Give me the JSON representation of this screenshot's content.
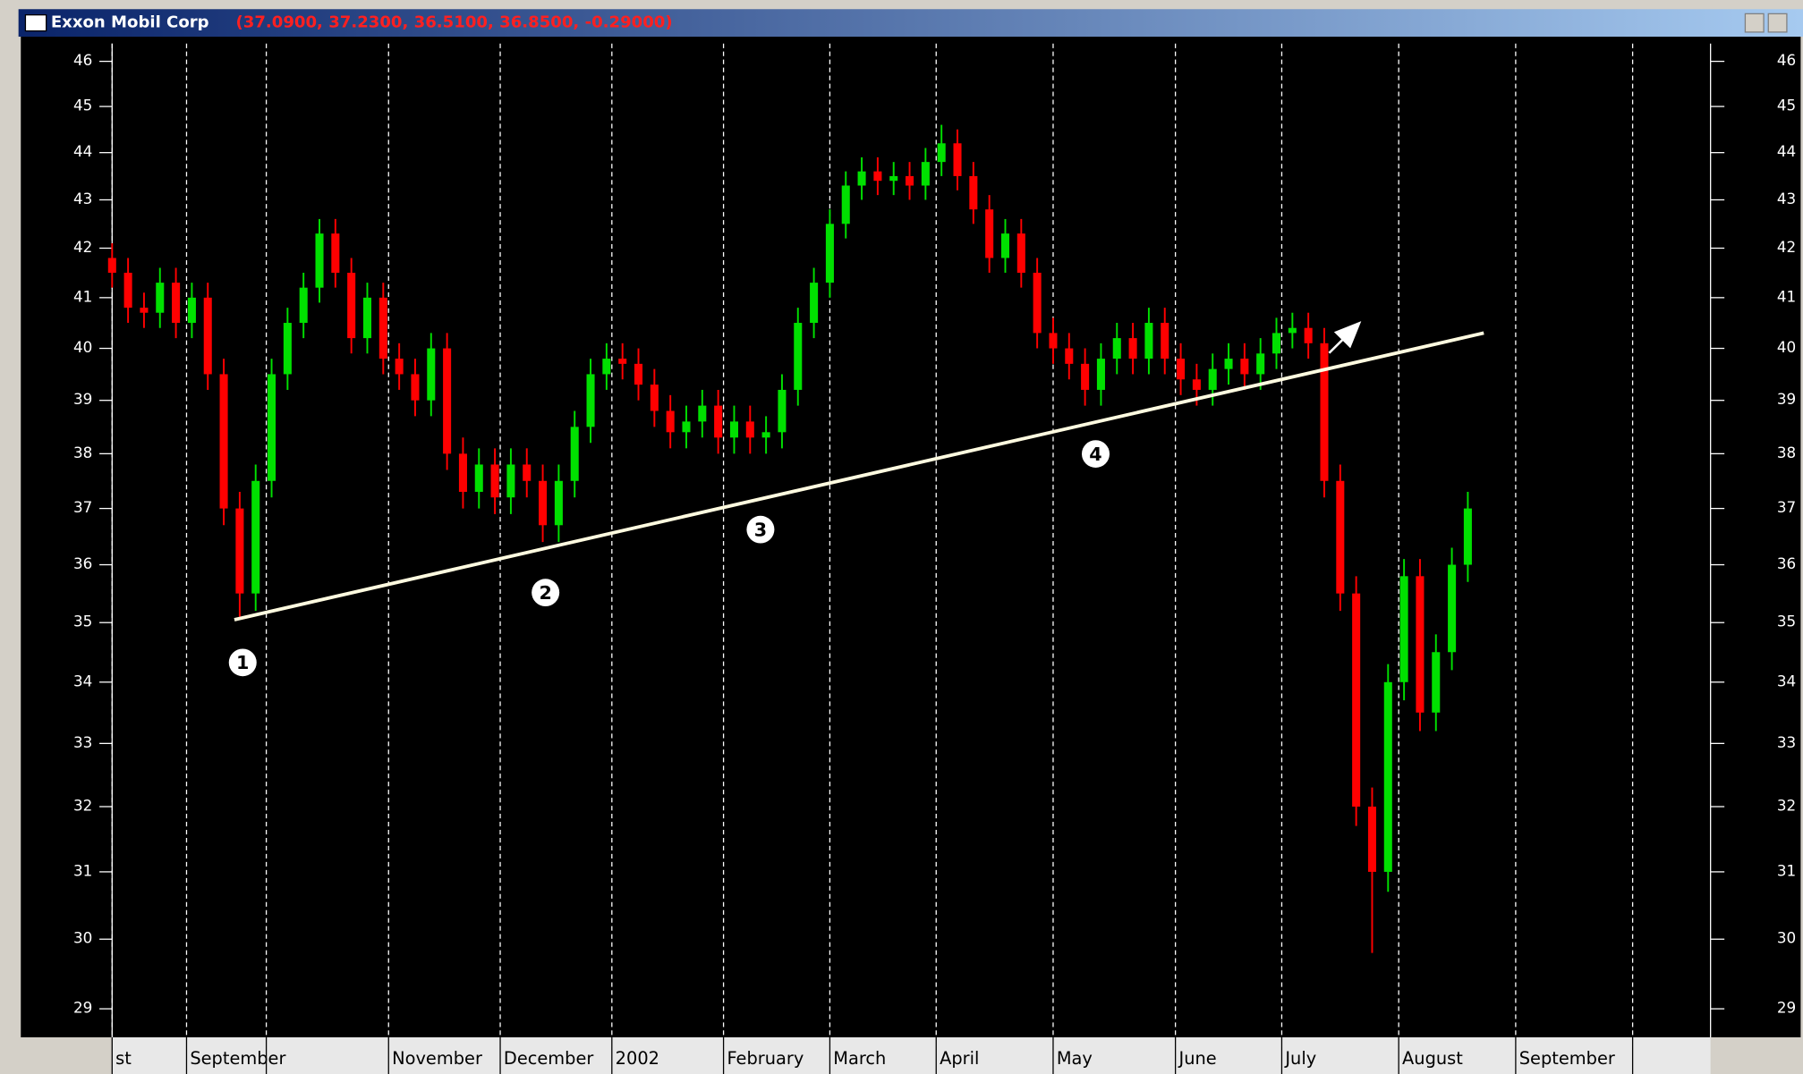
{
  "chart_data": {
    "type": "candlestick",
    "title": "Exxon Mobil Corp",
    "subtitle": "(37.0900, 37.2300, 36.5100, 36.8500, -0.29000)",
    "log_scale": true,
    "grid": true,
    "up_color": "#00e000",
    "down_color": "#ff0000",
    "xlim": [
      0,
      300
    ],
    "xticks": [
      {
        "value": 0,
        "label": "st"
      },
      {
        "value": 14,
        "label": "September"
      },
      {
        "value": 29,
        "label": null
      },
      {
        "value": 52,
        "label": "November"
      },
      {
        "value": 73,
        "label": "December"
      },
      {
        "value": 94,
        "label": "2002"
      },
      {
        "value": 115,
        "label": "February"
      },
      {
        "value": 135,
        "label": "March"
      },
      {
        "value": 155,
        "label": "April"
      },
      {
        "value": 177,
        "label": "May"
      },
      {
        "value": 200,
        "label": "June"
      },
      {
        "value": 220,
        "label": "July"
      },
      {
        "value": 242,
        "label": "August"
      },
      {
        "value": 264,
        "label": "September"
      },
      {
        "value": 286,
        "label": null
      }
    ],
    "ylim": [
      28.6,
      46.4
    ],
    "yticks": [
      29,
      30,
      31,
      32,
      33,
      34,
      35,
      36,
      37,
      38,
      39,
      40,
      41,
      42,
      43,
      44,
      45,
      46
    ],
    "x": [
      0,
      3,
      6,
      9,
      12,
      15,
      18,
      21,
      24,
      27,
      30,
      33,
      36,
      39,
      42,
      45,
      48,
      51,
      54,
      57,
      60,
      63,
      66,
      69,
      72,
      75,
      78,
      81,
      84,
      87,
      90,
      93,
      96,
      99,
      102,
      105,
      108,
      111,
      114,
      117,
      120,
      123,
      126,
      129,
      132,
      135,
      138,
      141,
      144,
      147,
      150,
      153,
      156,
      159,
      162,
      165,
      168,
      171,
      174,
      177,
      180,
      183,
      186,
      189,
      192,
      195,
      198,
      201,
      204,
      207,
      210,
      213,
      216,
      219,
      222,
      225,
      228,
      231,
      234,
      237,
      240,
      243,
      246,
      249,
      252,
      255
    ],
    "open": [
      41.8,
      41.5,
      40.8,
      40.7,
      41.3,
      40.5,
      41.0,
      39.5,
      37.0,
      35.5,
      37.5,
      39.5,
      40.5,
      41.2,
      42.3,
      41.5,
      40.2,
      41.0,
      39.8,
      39.5,
      39.0,
      40.0,
      38.0,
      37.3,
      37.8,
      37.2,
      37.8,
      37.5,
      36.7,
      37.5,
      38.5,
      39.5,
      39.8,
      39.7,
      39.3,
      38.8,
      38.4,
      38.6,
      38.9,
      38.3,
      38.6,
      38.3,
      38.4,
      39.2,
      40.5,
      41.3,
      42.5,
      43.3,
      43.6,
      43.4,
      43.5,
      43.3,
      43.8,
      44.2,
      43.5,
      42.8,
      41.8,
      42.3,
      41.5,
      40.3,
      40.0,
      39.7,
      39.2,
      39.8,
      40.2,
      39.8,
      40.5,
      39.8,
      39.4,
      39.2,
      39.6,
      39.8,
      39.5,
      39.9,
      40.3,
      40.4,
      40.1,
      37.5,
      35.5,
      32.0,
      31.0,
      34.0,
      35.8,
      33.5,
      34.5,
      36.0
    ],
    "high": [
      42.1,
      41.8,
      41.1,
      41.6,
      41.6,
      41.3,
      41.3,
      39.8,
      37.3,
      37.8,
      39.8,
      40.8,
      41.5,
      42.6,
      42.6,
      41.8,
      41.3,
      41.3,
      40.1,
      39.8,
      40.3,
      40.3,
      38.3,
      38.1,
      38.1,
      38.1,
      38.1,
      37.8,
      37.8,
      38.8,
      39.8,
      40.1,
      40.1,
      40.0,
      39.6,
      39.1,
      38.9,
      39.2,
      39.2,
      38.9,
      38.9,
      38.7,
      39.5,
      40.8,
      41.6,
      42.8,
      43.6,
      43.9,
      43.9,
      43.8,
      43.8,
      44.1,
      44.6,
      44.5,
      43.8,
      43.1,
      42.6,
      42.6,
      41.8,
      40.6,
      40.3,
      40.0,
      40.1,
      40.5,
      40.5,
      40.8,
      40.8,
      40.1,
      39.7,
      39.9,
      40.1,
      40.1,
      40.2,
      40.6,
      40.7,
      40.7,
      40.4,
      37.8,
      35.8,
      32.3,
      34.3,
      36.1,
      36.1,
      34.8,
      36.3,
      37.3
    ],
    "low": [
      41.2,
      40.5,
      40.4,
      40.4,
      40.2,
      40.2,
      39.2,
      36.7,
      35.1,
      35.2,
      37.2,
      39.2,
      40.2,
      40.9,
      41.2,
      39.9,
      39.9,
      39.5,
      39.2,
      38.7,
      38.7,
      37.7,
      37.0,
      37.0,
      36.9,
      36.9,
      37.2,
      36.4,
      36.4,
      37.2,
      38.2,
      39.2,
      39.4,
      39.0,
      38.5,
      38.1,
      38.1,
      38.3,
      38.0,
      38.0,
      38.0,
      38.0,
      38.1,
      38.9,
      40.2,
      41.0,
      42.2,
      43.0,
      43.1,
      43.1,
      43.0,
      43.0,
      43.5,
      43.2,
      42.5,
      41.5,
      41.5,
      41.2,
      40.0,
      39.7,
      39.4,
      38.9,
      38.9,
      39.5,
      39.5,
      39.5,
      39.5,
      39.1,
      38.9,
      38.9,
      39.3,
      39.2,
      39.2,
      39.6,
      40.0,
      39.8,
      37.2,
      35.2,
      31.7,
      29.8,
      30.7,
      33.7,
      33.2,
      33.2,
      34.2,
      35.7
    ],
    "close": [
      41.5,
      40.8,
      40.7,
      41.3,
      40.5,
      41.0,
      39.5,
      37.0,
      35.5,
      37.5,
      39.5,
      40.5,
      41.2,
      42.3,
      41.5,
      40.2,
      41.0,
      39.8,
      39.5,
      39.0,
      40.0,
      38.0,
      37.3,
      37.8,
      37.2,
      37.8,
      37.5,
      36.7,
      37.5,
      38.5,
      39.5,
      39.8,
      39.7,
      39.3,
      38.8,
      38.4,
      38.6,
      38.9,
      38.3,
      38.6,
      38.3,
      38.4,
      39.2,
      40.5,
      41.3,
      42.5,
      43.3,
      43.6,
      43.4,
      43.5,
      43.3,
      43.8,
      44.2,
      43.5,
      42.8,
      41.8,
      42.3,
      41.5,
      40.3,
      40.0,
      39.7,
      39.2,
      39.8,
      40.2,
      39.8,
      40.5,
      39.8,
      39.4,
      39.2,
      39.6,
      39.8,
      39.5,
      39.9,
      40.3,
      40.4,
      40.1,
      37.5,
      35.5,
      32.0,
      31.0,
      34.0,
      35.8,
      33.5,
      34.5,
      36.0,
      37.0
    ],
    "trendline": {
      "x": [
        23,
        258
      ],
      "y": [
        35.05,
        40.3
      ],
      "color": "#fffbe0"
    },
    "annotations": [
      "1",
      "2",
      "3",
      "4"
    ]
  }
}
